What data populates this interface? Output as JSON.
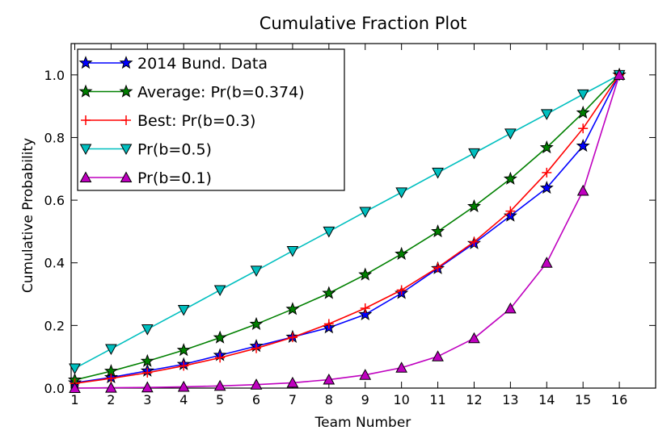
{
  "chart_data": {
    "type": "line",
    "title": "Cumulative Fraction Plot",
    "xlabel": "Team Number",
    "ylabel": "Cumulative Probability",
    "xlim": [
      0.9,
      17
    ],
    "ylim": [
      0,
      1.1
    ],
    "x": [
      1,
      2,
      3,
      4,
      5,
      6,
      7,
      8,
      9,
      10,
      11,
      12,
      13,
      14,
      15,
      16
    ],
    "x_ticks": [
      1,
      2,
      3,
      4,
      5,
      6,
      7,
      8,
      9,
      10,
      11,
      12,
      13,
      14,
      15,
      16
    ],
    "x_tick_labels": [
      "1",
      "2",
      "3",
      "4",
      "5",
      "6",
      "7",
      "8",
      "9",
      "10",
      "11",
      "12",
      "13",
      "14",
      "15",
      "16"
    ],
    "y_ticks": [
      0,
      0.2,
      0.4,
      0.6,
      0.8,
      1.0
    ],
    "y_tick_labels": [
      "0.0",
      "0.2",
      "0.4",
      "0.6",
      "0.8",
      "1.0"
    ],
    "grid": false,
    "legend_position": "top-left",
    "series": [
      {
        "name": "2014 Bund. Data",
        "color": "#0000ff",
        "marker": "star",
        "values": [
          0.017,
          0.034,
          0.055,
          0.076,
          0.105,
          0.134,
          0.163,
          0.193,
          0.235,
          0.303,
          0.382,
          0.462,
          0.55,
          0.639,
          0.773,
          1.0
        ]
      },
      {
        "name": "Average: Pr(b=0.374)",
        "color": "#008000",
        "marker": "star",
        "values": [
          0.026,
          0.054,
          0.086,
          0.121,
          0.161,
          0.204,
          0.252,
          0.303,
          0.362,
          0.428,
          0.5,
          0.58,
          0.668,
          0.768,
          0.879,
          1.0
        ]
      },
      {
        "name": "Best: Pr(b=0.3)",
        "color": "#ff0000",
        "marker": "plus",
        "values": [
          0.015,
          0.031,
          0.049,
          0.071,
          0.097,
          0.127,
          0.162,
          0.205,
          0.255,
          0.313,
          0.385,
          0.467,
          0.565,
          0.688,
          0.829,
          1.0
        ]
      },
      {
        "name": "Pr(b=0.5)",
        "color": "#00bfbf",
        "marker": "triangle-down",
        "values": [
          0.063,
          0.125,
          0.188,
          0.25,
          0.313,
          0.375,
          0.438,
          0.5,
          0.563,
          0.625,
          0.688,
          0.75,
          0.813,
          0.875,
          0.938,
          1.0
        ]
      },
      {
        "name": "Pr(b=0.1)",
        "color": "#bf00bf",
        "marker": "triangle-up",
        "values": [
          0.0,
          0.001,
          0.002,
          0.004,
          0.007,
          0.011,
          0.017,
          0.027,
          0.042,
          0.065,
          0.101,
          0.159,
          0.254,
          0.4,
          0.63,
          1.0
        ]
      }
    ]
  }
}
